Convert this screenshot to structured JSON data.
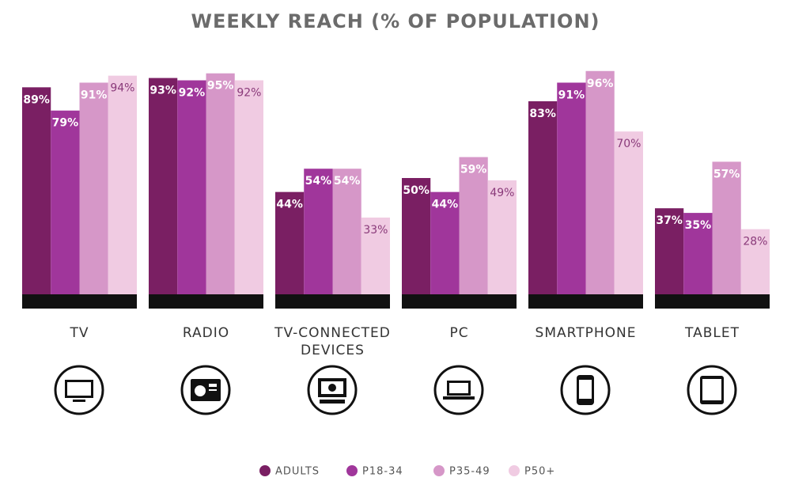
{
  "chart_data": {
    "type": "bar",
    "title": "WEEKLY REACH (% OF POPULATION)",
    "categories": [
      "TV",
      "RADIO",
      "TV-CONNECTED DEVICES",
      "PC",
      "SMARTPHONE",
      "TABLET"
    ],
    "series": [
      {
        "name": "ADULTS",
        "color": "#7a1f63",
        "values": [
          89,
          93,
          44,
          50,
          83,
          37
        ],
        "value_labels": [
          "89%",
          "93%",
          "44%",
          "50%",
          "83%",
          "37%"
        ]
      },
      {
        "name": "P18-34",
        "color": "#a0369b",
        "values": [
          79,
          92,
          54,
          44,
          91,
          35
        ],
        "value_labels": [
          "79%",
          "92%",
          "54%",
          "44%",
          "91%",
          "35%"
        ]
      },
      {
        "name": "P35-49",
        "color": "#d697c8",
        "values": [
          91,
          95,
          54,
          59,
          96,
          57
        ],
        "value_labels": [
          "91%",
          "95%",
          "54%",
          "59%",
          "96%",
          "57%"
        ]
      },
      {
        "name": "P50+",
        "color": "#f0cbe2",
        "values": [
          94,
          92,
          33,
          49,
          70,
          28
        ],
        "value_labels": [
          "94%",
          "92%",
          "33%",
          "49%",
          "70%",
          "28%"
        ]
      }
    ],
    "ylim": [
      0,
      100
    ]
  }
}
